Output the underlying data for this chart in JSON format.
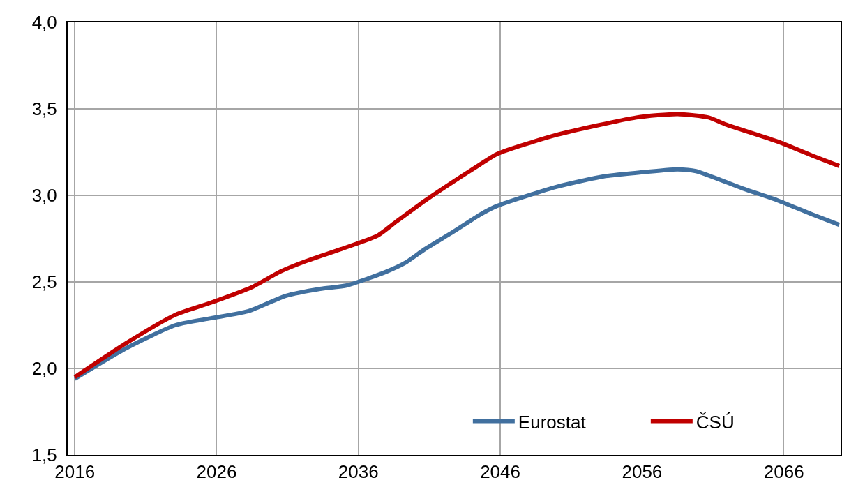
{
  "chart_data": {
    "type": "line",
    "xlim": [
      2015.5,
      2070
    ],
    "xticks": [
      2016,
      2026,
      2036,
      2046,
      2056,
      2066
    ],
    "ylim": [
      1.5,
      4.0
    ],
    "yticks": [
      {
        "value": 1.5,
        "label": "1,5"
      },
      {
        "value": 2.0,
        "label": "2,0"
      },
      {
        "value": 2.5,
        "label": "2,5"
      },
      {
        "value": 3.0,
        "label": "3,0"
      },
      {
        "value": 3.5,
        "label": "3,5"
      },
      {
        "value": 4.0,
        "label": "4,0"
      }
    ],
    "grid": true,
    "legend": "bottom right",
    "marker": "none",
    "line_style": "solid",
    "series": [
      {
        "name": "Eurostat",
        "color": "#41709f",
        "x": [
          2016,
          2019.7,
          2023.1,
          2025.6,
          2028.2,
          2030.9,
          2033.3,
          2035.2,
          2038,
          2039.3,
          2040.7,
          2042.7,
          2044.6,
          2045.8,
          2050,
          2053.3,
          2055.6,
          2058.5,
          2059.8,
          2063.1,
          2065.6,
          2068,
          2069.9
        ],
        "values": [
          1.94,
          2.12,
          2.25,
          2.29,
          2.33,
          2.42,
          2.46,
          2.48,
          2.56,
          2.61,
          2.69,
          2.79,
          2.89,
          2.94,
          3.05,
          3.11,
          3.13,
          3.15,
          3.14,
          3.04,
          2.97,
          2.89,
          2.83
        ]
      },
      {
        "name": "ČSÚ",
        "color": "#c00000",
        "x": [
          2016,
          2019.7,
          2023.1,
          2025.6,
          2028.5,
          2030.5,
          2032.3,
          2034.8,
          2037.4,
          2038.7,
          2040.7,
          2042.7,
          2044.6,
          2045.8,
          2050,
          2055.6,
          2058.5,
          2060.7,
          2061.9,
          2065.6,
          2068,
          2069.9
        ],
        "values": [
          1.95,
          2.15,
          2.31,
          2.38,
          2.47,
          2.56,
          2.62,
          2.69,
          2.77,
          2.85,
          2.97,
          3.08,
          3.18,
          3.24,
          3.35,
          3.45,
          3.47,
          3.45,
          3.41,
          3.31,
          3.23,
          3.17
        ]
      }
    ]
  }
}
